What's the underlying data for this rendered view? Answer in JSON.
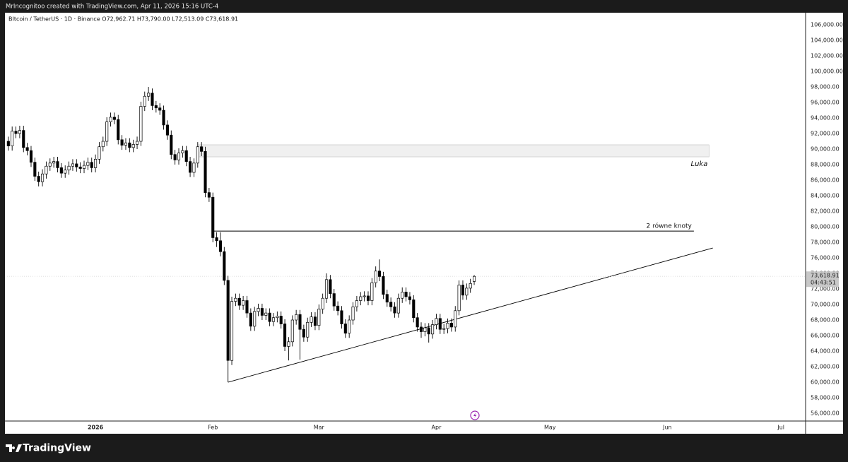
{
  "header": {
    "author": "MrIncognitoo created with TradingView.com, Apr 11, 2026 15:16 UTC-4"
  },
  "footer": {
    "brand": "TradingView"
  },
  "chart_data": {
    "type": "candlestick",
    "title": "BItcoin / TetherUS · 1D · Binance  O72,962.71 H73,790.00 L72,513.09 C73,618.91",
    "up_color": "#ffffff",
    "down_color": "#000000",
    "outline_color": "#000000",
    "categories": [
      null,
      null,
      null,
      null,
      null,
      null,
      null,
      null,
      null,
      null,
      null,
      null,
      null,
      null,
      null,
      null,
      null,
      null,
      null,
      null,
      null,
      null,
      null,
      null,
      null,
      null,
      null,
      null,
      null,
      null,
      null,
      null,
      null,
      null,
      null,
      null,
      null,
      null,
      null,
      null,
      null,
      null,
      null,
      null,
      null,
      null,
      null,
      null,
      null,
      null,
      null,
      null,
      null,
      null,
      null,
      null,
      null,
      null,
      null,
      null,
      null,
      null,
      null,
      null,
      null,
      null,
      null,
      null,
      null,
      null,
      null,
      null,
      null,
      null,
      null,
      null,
      null,
      null,
      null,
      null,
      null,
      null,
      null,
      null,
      null,
      null,
      null,
      null,
      null,
      null,
      null,
      null,
      null,
      null,
      null,
      null,
      null,
      null,
      null,
      null,
      null,
      null,
      null,
      null,
      null,
      null,
      null,
      null,
      null,
      null,
      null,
      null,
      null,
      null,
      null,
      null,
      null,
      null,
      null,
      null,
      null,
      null,
      null,
      null
    ],
    "open": [
      91000,
      90400,
      92300,
      92000,
      92400,
      90200,
      89800,
      88300,
      86500,
      85800,
      86800,
      87800,
      88200,
      88400,
      87600,
      86900,
      87300,
      87800,
      88100,
      87700,
      87500,
      87900,
      88300,
      87600,
      88700,
      90300,
      91000,
      93500,
      94100,
      93800,
      91200,
      90500,
      90800,
      90200,
      90600,
      91000,
      95500,
      96800,
      97200,
      95600,
      95300,
      95000,
      93100,
      91800,
      89300,
      88600,
      89500,
      89800,
      88400,
      87000,
      88200,
      90300,
      89700,
      84400,
      83800,
      78600,
      78200,
      76800,
      73100,
      62800,
      70400,
      70800,
      69900,
      70500,
      68900,
      67200,
      69100,
      69500,
      68600,
      68900,
      67800,
      68300,
      68500,
      67500,
      64600,
      65200,
      68000,
      68700,
      66800,
      65800,
      67700,
      68400,
      67300,
      69400,
      70800,
      73200,
      71400,
      69800,
      69200,
      67500,
      66300,
      68000,
      69700,
      70500,
      71000,
      71100,
      70500,
      72800,
      74300,
      73600,
      71300,
      70300,
      69700,
      68900,
      70800,
      71600,
      71000,
      70600,
      68300,
      67100,
      66500,
      67000,
      66200,
      67400,
      68200,
      66800,
      66900,
      67600,
      67100,
      69200,
      72500,
      71200,
      72100,
      72962.71
    ],
    "high": [
      91600,
      92900,
      92900,
      93000,
      93000,
      90800,
      90400,
      88900,
      87100,
      87400,
      88400,
      88800,
      89000,
      89000,
      88200,
      87900,
      88400,
      88700,
      88700,
      88300,
      88500,
      88900,
      88900,
      89300,
      90900,
      91600,
      94100,
      94700,
      94700,
      94400,
      91800,
      91400,
      91400,
      91200,
      91600,
      96100,
      97400,
      98000,
      97800,
      96200,
      95900,
      95600,
      93700,
      92400,
      89900,
      90100,
      90400,
      90400,
      89000,
      88800,
      90900,
      90900,
      90300,
      85000,
      84400,
      79300,
      79300,
      77400,
      73700,
      71000,
      71400,
      71400,
      71100,
      71100,
      69500,
      69700,
      70100,
      70100,
      69500,
      69500,
      68900,
      69100,
      69100,
      68100,
      65800,
      68600,
      69300,
      69300,
      67400,
      68300,
      69000,
      69000,
      70000,
      71400,
      74000,
      73800,
      72000,
      70400,
      69800,
      68100,
      68600,
      70300,
      71100,
      71600,
      71700,
      71700,
      73400,
      74900,
      75800,
      74200,
      71900,
      70900,
      70300,
      71400,
      72200,
      72200,
      71600,
      71200,
      68900,
      67700,
      67600,
      67600,
      68000,
      68800,
      68800,
      67500,
      68200,
      68200,
      69800,
      73100,
      73100,
      72700,
      73300,
      73790
    ],
    "low": [
      89800,
      89800,
      91400,
      91400,
      89600,
      89200,
      87700,
      85900,
      85200,
      85200,
      86200,
      87200,
      87600,
      87000,
      86300,
      86300,
      86700,
      87200,
      87100,
      86900,
      86900,
      87300,
      87000,
      87000,
      88100,
      89700,
      90400,
      92900,
      93200,
      90600,
      89900,
      89900,
      89600,
      89600,
      90000,
      90400,
      94900,
      96200,
      95000,
      94700,
      94400,
      92500,
      91200,
      88700,
      88000,
      88000,
      88900,
      87800,
      86400,
      86400,
      87600,
      89100,
      83800,
      83200,
      78000,
      77400,
      76200,
      72500,
      60000,
      62200,
      69800,
      69300,
      69300,
      68300,
      66600,
      66600,
      68500,
      68000,
      68000,
      67200,
      67200,
      67700,
      66900,
      64000,
      62800,
      64600,
      67400,
      62900,
      65200,
      65200,
      67100,
      66700,
      66700,
      68800,
      70200,
      70800,
      69200,
      68600,
      66900,
      65700,
      65700,
      67400,
      69100,
      69900,
      70400,
      69900,
      69900,
      72200,
      73000,
      70700,
      69700,
      69100,
      68300,
      68300,
      70200,
      70400,
      70000,
      67700,
      66500,
      65700,
      65900,
      65100,
      65600,
      66800,
      66200,
      66200,
      66300,
      66500,
      66500,
      68600,
      70600,
      70600,
      71500,
      72513.09
    ],
    "close": [
      90400,
      92300,
      92000,
      92400,
      90200,
      89800,
      88300,
      86500,
      85800,
      86800,
      87800,
      88200,
      88400,
      87600,
      86900,
      87300,
      87800,
      88100,
      87700,
      87500,
      87900,
      88300,
      87600,
      88700,
      90300,
      91000,
      93500,
      94100,
      93800,
      91200,
      90500,
      90800,
      90200,
      90600,
      91000,
      95500,
      96800,
      97200,
      95600,
      95300,
      95000,
      93100,
      91800,
      89300,
      88600,
      89500,
      89800,
      88400,
      87000,
      88200,
      90300,
      89700,
      84400,
      83800,
      78600,
      78200,
      76800,
      73100,
      62800,
      70400,
      70800,
      69900,
      70500,
      68900,
      67200,
      69100,
      69500,
      68600,
      68900,
      67800,
      68300,
      68500,
      67500,
      64600,
      65200,
      68000,
      68700,
      66800,
      65800,
      67700,
      68400,
      67300,
      69400,
      70800,
      73200,
      71400,
      69800,
      69200,
      67500,
      66300,
      68000,
      69700,
      70500,
      71000,
      71100,
      70500,
      72800,
      74300,
      73600,
      71300,
      70300,
      69700,
      68900,
      70800,
      71600,
      71000,
      70600,
      68300,
      67100,
      66500,
      67000,
      66200,
      67400,
      68200,
      66800,
      66900,
      67600,
      67100,
      69200,
      72500,
      71200,
      72100,
      72700,
      73618.91
    ],
    "xlim": [
      -0.9,
      210.5
    ],
    "xticks": [
      {
        "value": 23,
        "label": "2026"
      },
      {
        "value": 54,
        "label": "Feb"
      },
      {
        "value": 82,
        "label": "Mar"
      },
      {
        "value": 113,
        "label": "Apr"
      },
      {
        "value": 143,
        "label": "May"
      },
      {
        "value": 174,
        "label": "Jun"
      },
      {
        "value": 204,
        "label": "Jul"
      }
    ],
    "ylim": [
      55000,
      107550
    ],
    "yticks": [
      {
        "value": 56000,
        "label": "56,000.00"
      },
      {
        "value": 58000,
        "label": "58,000.00"
      },
      {
        "value": 60000,
        "label": "60,000.00"
      },
      {
        "value": 62000,
        "label": "62,000.00"
      },
      {
        "value": 64000,
        "label": "64,000.00"
      },
      {
        "value": 66000,
        "label": "66,000.00"
      },
      {
        "value": 68000,
        "label": "68,000.00"
      },
      {
        "value": 70000,
        "label": "70,000.00"
      },
      {
        "value": 72000,
        "label": "72,000.00"
      },
      {
        "value": 74000,
        "label": "74,000.00"
      },
      {
        "value": 76000,
        "label": "76,000.00"
      },
      {
        "value": 78000,
        "label": "78,000.00"
      },
      {
        "value": 80000,
        "label": "80,000.00"
      },
      {
        "value": 82000,
        "label": "82,000.00"
      },
      {
        "value": 84000,
        "label": "84,000.00"
      },
      {
        "value": 86000,
        "label": "86,000.00"
      },
      {
        "value": 88000,
        "label": "88,000.00"
      },
      {
        "value": 90000,
        "label": "90,000.00"
      },
      {
        "value": 92000,
        "label": "92,000.00"
      },
      {
        "value": 94000,
        "label": "94,000.00"
      },
      {
        "value": 96000,
        "label": "96,000.00"
      },
      {
        "value": 98000,
        "label": "98,000.00"
      },
      {
        "value": 100000,
        "label": "100,000.00"
      },
      {
        "value": 102000,
        "label": "102,000.00"
      },
      {
        "value": 104000,
        "label": "104,000.00"
      },
      {
        "value": 106000,
        "label": "106,000.00"
      }
    ],
    "last_price": {
      "value": 73618.91,
      "label": "73,618.91",
      "countdown": "04:43:51",
      "color": "#c8c8c8"
    },
    "annotations": [
      {
        "type": "zone",
        "x": [
          50,
          185
        ],
        "y": [
          89000,
          90550
        ],
        "text": "Luka",
        "color": "#f0f0f0"
      },
      {
        "type": "hline",
        "x": [
          54,
          181
        ],
        "y": 79450,
        "text": "2 równe knoty",
        "color": "#000000"
      },
      {
        "type": "trendline",
        "x": [
          58,
          186
        ],
        "y": [
          60000,
          77270
        ],
        "color": "#000000"
      }
    ]
  }
}
